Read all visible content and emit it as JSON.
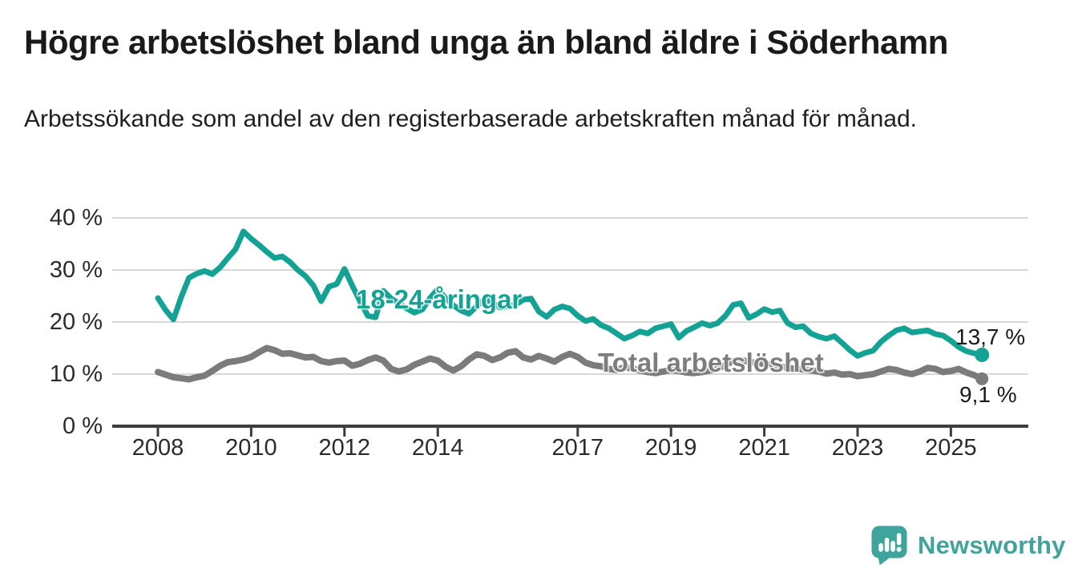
{
  "header": {
    "title": "Högre arbetslöshet bland unga än bland äldre i Söderhamn",
    "subtitle": "Arbetssökande som andel av den registerbaserade arbetskraften månad för månad."
  },
  "annotations": {
    "young_series_label": "18-24-åringar",
    "total_series_label": "Total arbetslöshet",
    "young_end_label": "13,7 %",
    "total_end_label": "9,1 %"
  },
  "colors": {
    "young_line": "#14A294",
    "total_line": "#7B7B7B",
    "gridline": "#d8d8d8",
    "axis": "#3d3d3d",
    "brand_teal": "#3FA49C",
    "text": "#1a1a1a"
  },
  "footer": {
    "brand": "Newsworthy",
    "logo_icon": "bar-chart-speech-bubble-icon"
  },
  "chart_data": {
    "type": "line",
    "title": "Högre arbetslöshet bland unga än bland äldre i Söderhamn",
    "subtitle": "Arbetssökande som andel av den registerbaserade arbetskraften månad för månad.",
    "unit": "percent of registered labour force",
    "x_start": 2008.0,
    "x_step_years": 0.1666667,
    "x_ticks": [
      2008,
      2010,
      2012,
      2014,
      2017,
      2019,
      2021,
      2023,
      2025
    ],
    "y_ticks": [
      0,
      10,
      20,
      30,
      40
    ],
    "y_tick_suffix": " %",
    "xlim": [
      2007.0,
      2026.6
    ],
    "ylim": [
      0,
      42
    ],
    "grid": "horizontal",
    "legend_position": "inline-labels-on-lines",
    "series": [
      {
        "name": "18-24-åringar",
        "color": "#14A294",
        "end_value": 13.7,
        "end_label": "13,7 %",
        "values": [
          24.6,
          22.3,
          20.5,
          24.8,
          28.5,
          29.3,
          29.8,
          29.2,
          30.5,
          32.3,
          34.0,
          37.4,
          36.0,
          34.8,
          33.5,
          32.3,
          32.6,
          31.5,
          30.0,
          28.8,
          27.0,
          24.0,
          26.8,
          27.3,
          30.2,
          27.0,
          24.0,
          21.2,
          20.9,
          26.0,
          24.5,
          23.6,
          22.6,
          21.8,
          22.4,
          24.6,
          26.3,
          24.6,
          23.2,
          22.2,
          21.6,
          23.0,
          24.4,
          23.8,
          22.8,
          23.0,
          23.3,
          24.3,
          24.5,
          22.0,
          21.0,
          22.4,
          23.0,
          22.6,
          21.2,
          20.2,
          20.6,
          19.4,
          18.8,
          17.8,
          16.8,
          17.4,
          18.2,
          17.8,
          18.8,
          19.2,
          19.6,
          17.0,
          18.3,
          19.0,
          19.8,
          19.3,
          19.8,
          21.2,
          23.3,
          23.6,
          20.8,
          21.5,
          22.5,
          21.9,
          22.2,
          19.8,
          19.0,
          19.2,
          17.8,
          17.2,
          16.8,
          17.3,
          16.0,
          14.6,
          13.5,
          14.1,
          14.5,
          16.2,
          17.4,
          18.4,
          18.8,
          18.0,
          18.2,
          18.4,
          17.7,
          17.4,
          16.4,
          15.2,
          14.4,
          14.0,
          13.7
        ]
      },
      {
        "name": "Total arbetslöshet",
        "color": "#7B7B7B",
        "end_value": 9.1,
        "end_label": "9,1 %",
        "values": [
          10.4,
          9.9,
          9.4,
          9.2,
          9.0,
          9.4,
          9.7,
          10.6,
          11.6,
          12.3,
          12.5,
          12.8,
          13.3,
          14.2,
          15.0,
          14.6,
          13.9,
          14.0,
          13.6,
          13.2,
          13.3,
          12.5,
          12.2,
          12.5,
          12.6,
          11.6,
          12.0,
          12.7,
          13.2,
          12.6,
          11.0,
          10.5,
          10.9,
          11.8,
          12.4,
          13.0,
          12.6,
          11.4,
          10.7,
          11.5,
          12.8,
          13.8,
          13.5,
          12.7,
          13.2,
          14.1,
          14.4,
          13.2,
          12.8,
          13.5,
          13.0,
          12.4,
          13.3,
          13.9,
          13.3,
          12.2,
          11.7,
          11.5,
          11.0,
          10.8,
          11.3,
          11.1,
          10.7,
          10.4,
          10.2,
          10.5,
          10.8,
          10.6,
          10.3,
          10.2,
          10.4,
          10.7,
          11.0,
          11.8,
          12.5,
          12.7,
          12.4,
          12.1,
          12.0,
          11.8,
          11.5,
          11.2,
          11.0,
          10.9,
          10.7,
          10.5,
          10.1,
          10.3,
          9.9,
          10.0,
          9.6,
          9.8,
          10.0,
          10.5,
          11.0,
          10.8,
          10.3,
          10.0,
          10.5,
          11.2,
          11.0,
          10.4,
          10.6,
          11.0,
          10.3,
          9.8,
          9.1
        ]
      }
    ]
  }
}
